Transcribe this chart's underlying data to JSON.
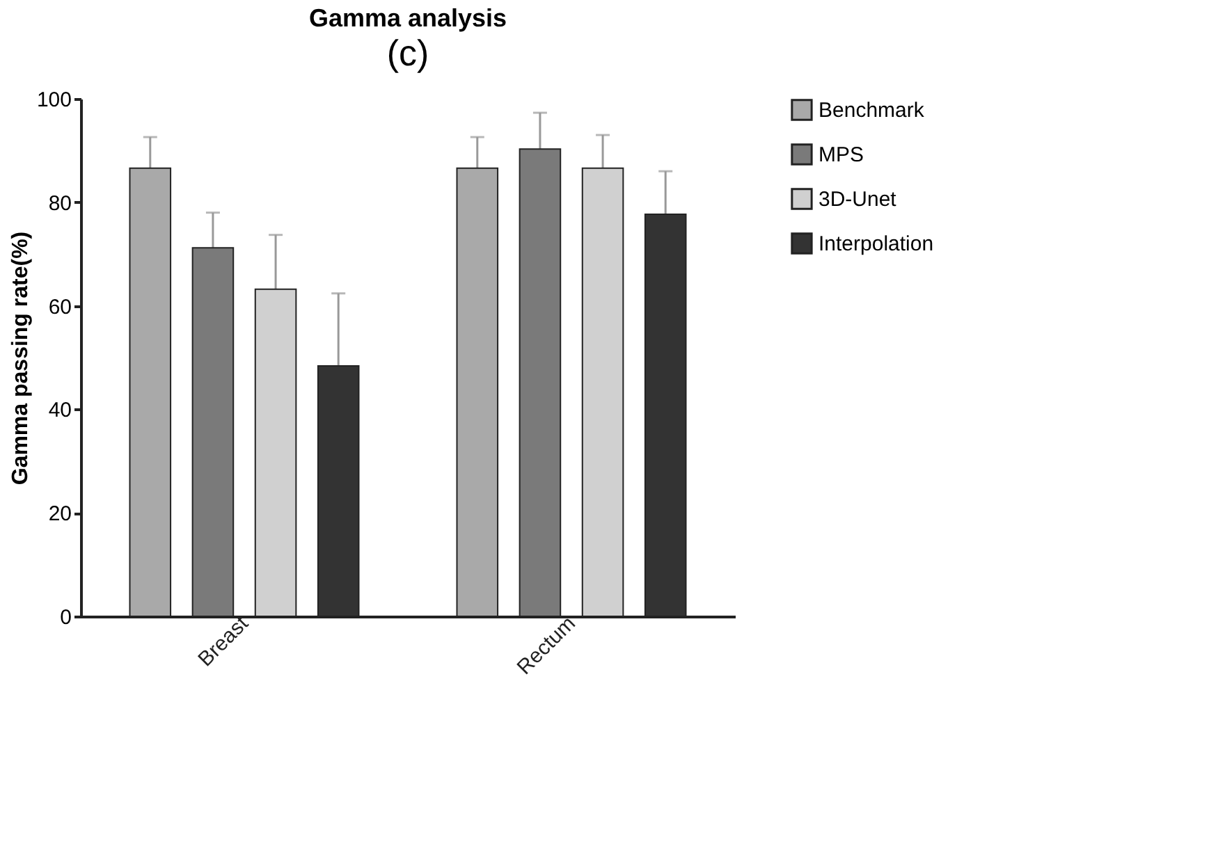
{
  "chart_data": {
    "type": "bar",
    "title": "Gamma analysis",
    "ylabel": "Gamma passing rate(%)",
    "categories": [
      "Breast",
      "Rectum"
    ],
    "series": [
      {
        "name": "Benchmark",
        "color": "#a9a9a9",
        "values": [
          86.6,
          86.6
        ],
        "errors": [
          6,
          6
        ]
      },
      {
        "name": "MPS",
        "color": "#7a7a7a",
        "values": [
          71.2,
          90.3
        ],
        "errors": [
          6.8,
          7
        ]
      },
      {
        "name": "3D-Unet",
        "color": "#d0d0d0",
        "values": [
          63.2,
          86.6
        ],
        "errors": [
          10.5,
          6.4
        ]
      },
      {
        "name": "Interpolation",
        "color": "#333333",
        "values": [
          48.4,
          77.7
        ],
        "errors": [
          14,
          8.3
        ]
      }
    ],
    "ylim": [
      0,
      100
    ],
    "yticks": [
      0,
      20,
      40,
      60,
      80,
      100
    ],
    "grid": false,
    "legend": "top right",
    "annotations": [
      "(c)"
    ]
  }
}
